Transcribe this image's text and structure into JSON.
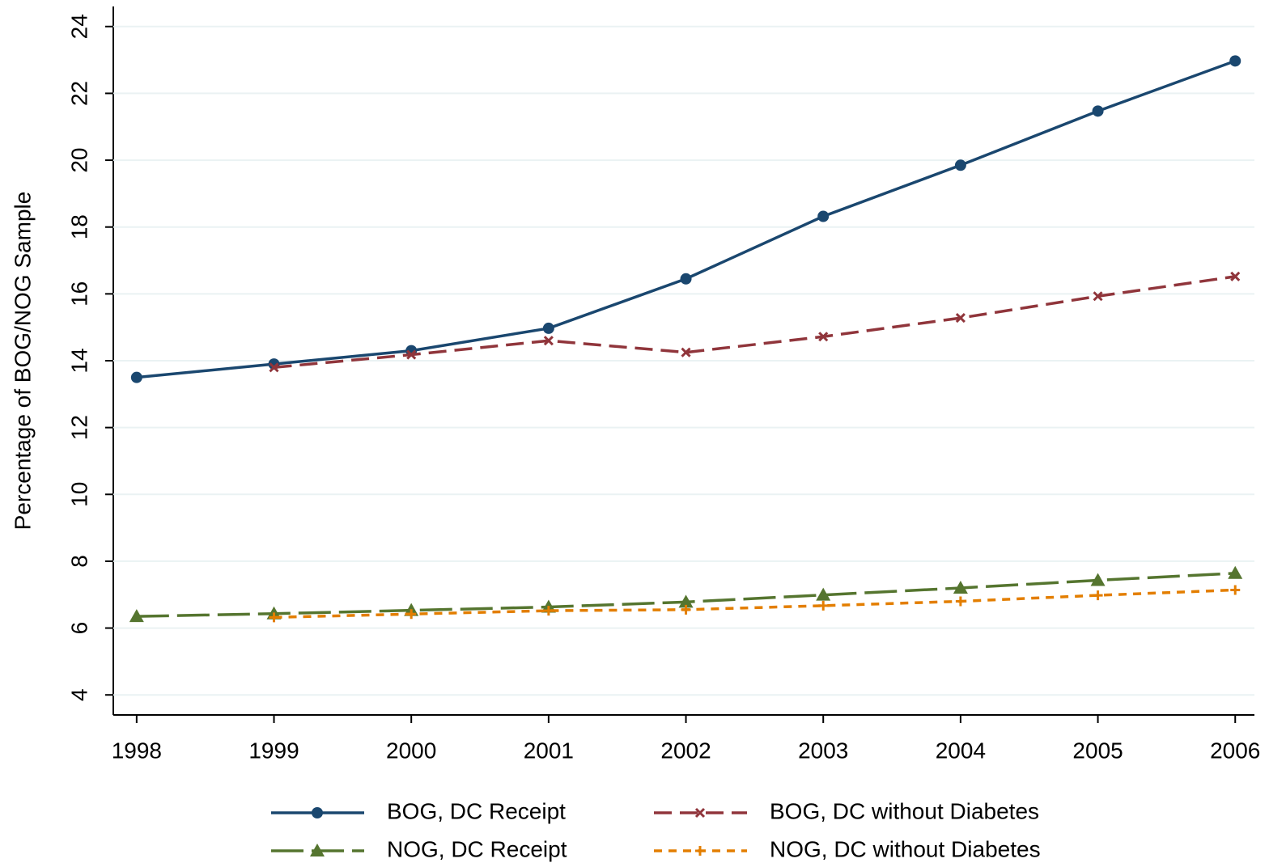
{
  "chart_data": {
    "type": "line",
    "y_label": "Percentage of BOG/NOG Sample",
    "x": [
      1998,
      1999,
      2000,
      2001,
      2002,
      2003,
      2004,
      2005,
      2006
    ],
    "series": [
      {
        "name": "BOG, DC Receipt",
        "color": "#1a476f",
        "marker": "circle",
        "line_style": "solid",
        "values": [
          13.5,
          13.9,
          14.3,
          14.97,
          16.45,
          18.32,
          19.85,
          21.47,
          22.97
        ]
      },
      {
        "name": "BOG, DC without Diabetes",
        "color": "#90353b",
        "marker": "x",
        "line_style": "dashed",
        "values": [
          null,
          13.8,
          14.18,
          14.6,
          14.25,
          14.72,
          15.28,
          15.93,
          16.52
        ]
      },
      {
        "name": "NOG, DC Receipt",
        "color": "#55752f",
        "marker": "triangle",
        "line_style": "longdash",
        "values": [
          6.35,
          6.43,
          6.53,
          6.63,
          6.78,
          6.99,
          7.2,
          7.43,
          7.64
        ]
      },
      {
        "name": "NOG, DC without Diabetes",
        "color": "#e37e00",
        "marker": "plus",
        "line_style": "dotted",
        "values": [
          null,
          6.32,
          6.42,
          6.52,
          6.55,
          6.67,
          6.8,
          6.98,
          7.14
        ]
      }
    ],
    "xlim": [
      1997.83,
      2006.14
    ],
    "xticks": [
      1998,
      1999,
      2000,
      2001,
      2002,
      2003,
      2004,
      2005,
      2006
    ],
    "ylim": [
      3.4,
      24.6
    ],
    "yticks": [
      4,
      6,
      8,
      10,
      12,
      14,
      16,
      18,
      20,
      22,
      24
    ],
    "grid": true,
    "legend_position": "bottom"
  }
}
